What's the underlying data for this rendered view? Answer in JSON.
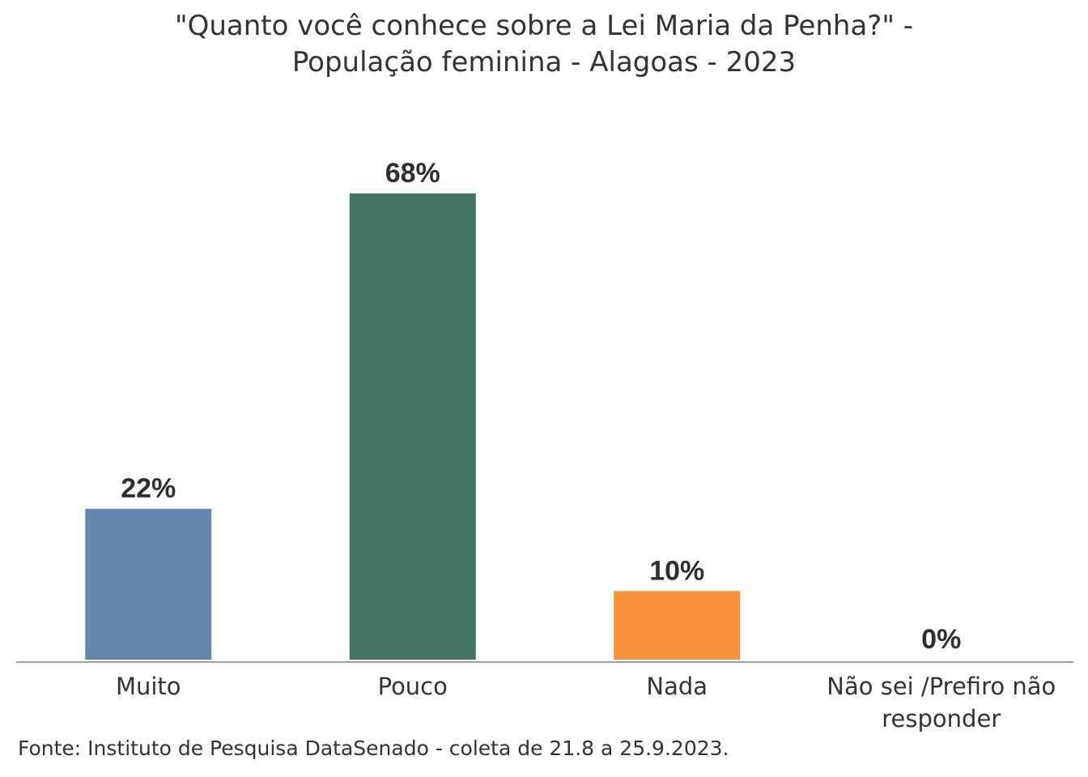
{
  "chart_data": {
    "type": "bar",
    "title_lines": [
      "\"Quanto você conhece sobre a Lei Maria da Penha?\" -",
      "População feminina - Alagoas - 2023"
    ],
    "categories": [
      "Muito",
      "Pouco",
      "Nada",
      "Não sei /Prefiro não responder"
    ],
    "category_label_lines": [
      [
        "Muito"
      ],
      [
        "Pouco"
      ],
      [
        "Nada"
      ],
      [
        "Não sei /Prefiro não",
        "responder"
      ]
    ],
    "values": [
      22,
      68,
      10,
      0
    ],
    "value_labels": [
      "22%",
      "68%",
      "10%",
      "0%"
    ],
    "colors": [
      "#6687ad",
      "#447462",
      "#f8923b",
      "#9e9e9e"
    ],
    "ylim": [
      0,
      68
    ],
    "grid": false,
    "legend": "none"
  },
  "source": "Fonte: Instituto de Pesquisa DataSenado - coleta de 21.8 a 25.9.2023."
}
